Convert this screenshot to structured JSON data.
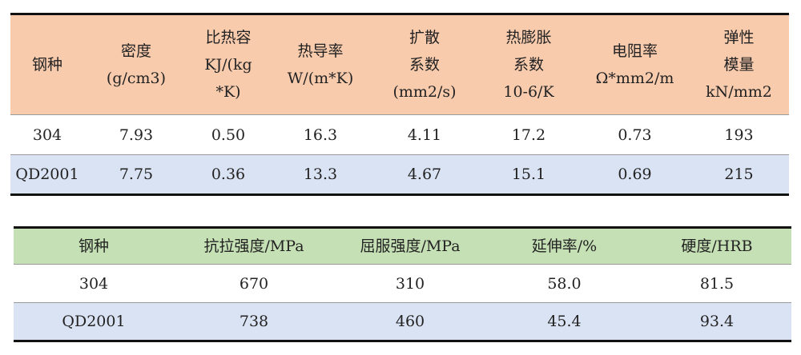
{
  "colors": {
    "table1_header": "#F8CBAD",
    "table2_header": "#C5E0B4",
    "alt_row": "#DAE3F3",
    "rule": "#111111"
  },
  "physical_table": {
    "headers": [
      [
        "钢种"
      ],
      [
        "密度",
        "(g/cm3)"
      ],
      [
        "比热容",
        "KJ/(kg",
        "*K)"
      ],
      [
        "热导率",
        "W/(m*K)"
      ],
      [
        "扩散",
        "系数",
        "(mm2/s)"
      ],
      [
        "热膨胀",
        "系数",
        "10-6/K"
      ],
      [
        "电阻率",
        "Ω*mm2/m"
      ],
      [
        "弹性",
        "模量",
        "kN/mm2"
      ]
    ],
    "rows": [
      [
        "304",
        "7.93",
        "0.50",
        "16.3",
        "4.11",
        "17.2",
        "0.73",
        "193"
      ],
      [
        "QD2001",
        "7.75",
        "0.36",
        "13.3",
        "4.67",
        "15.1",
        "0.69",
        "215"
      ]
    ]
  },
  "mechanical_table": {
    "headers": [
      [
        "钢种"
      ],
      [
        "抗拉强度/MPa"
      ],
      [
        "屈服强度/MPa"
      ],
      [
        "延伸率/%"
      ],
      [
        "硬度/HRB"
      ]
    ],
    "rows": [
      [
        "304",
        "670",
        "310",
        "58.0",
        "81.5"
      ],
      [
        "QD2001",
        "738",
        "460",
        "45.4",
        "93.4"
      ]
    ]
  }
}
